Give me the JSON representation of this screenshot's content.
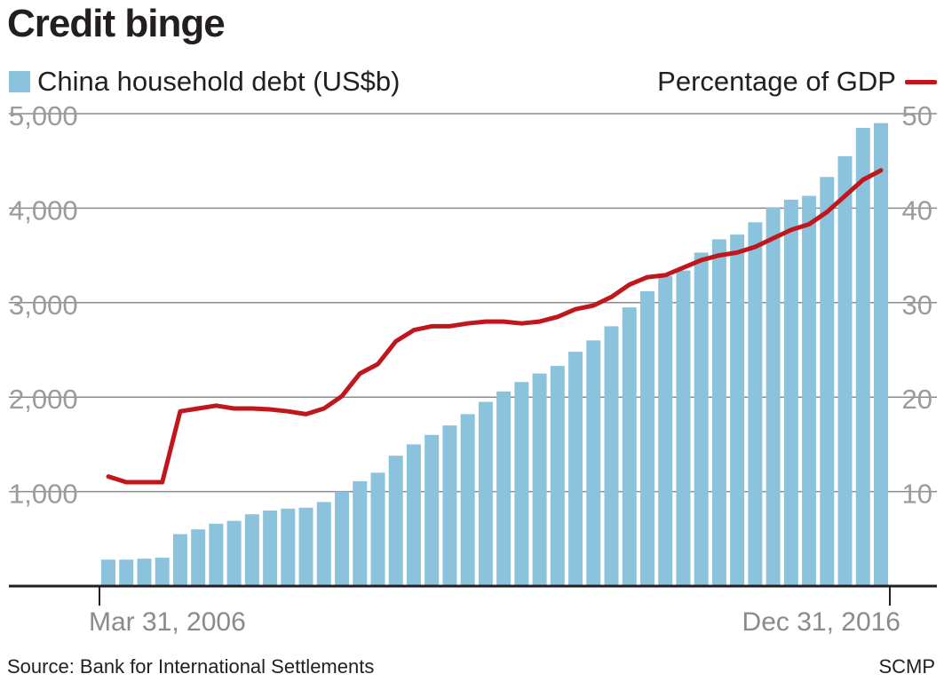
{
  "title": "Credit binge",
  "legend": {
    "bars_label": "China household debt (US$b)",
    "line_label": "Percentage of GDP"
  },
  "footer": {
    "source": "Source: Bank for International Settlements",
    "credit": "SCMP"
  },
  "colors": {
    "bar": "#8cc3dc",
    "line": "#c0171d",
    "grid": "#8a8b8d",
    "axis": "#231f20",
    "tick_label": "#9a9b9d"
  },
  "chart_data": {
    "type": "bar",
    "title": "Credit binge",
    "x": {
      "first_label": "Mar 31, 2006",
      "last_label": "Dec 31, 2016",
      "tick_labels": [
        "Mar 31, 2006",
        "Dec 31, 2016"
      ]
    },
    "y_left": {
      "label": "China household debt (US$b)",
      "ylim": [
        0,
        5000
      ],
      "ticks": [
        "1,000",
        "2,000",
        "3,000",
        "4,000",
        "5,000"
      ],
      "tick_values": [
        1000,
        2000,
        3000,
        4000,
        5000
      ]
    },
    "y_right": {
      "label": "Percentage of GDP",
      "ylim": [
        0,
        50
      ],
      "ticks": [
        "10",
        "20",
        "30",
        "40",
        "50"
      ],
      "tick_values": [
        10,
        20,
        30,
        40,
        50
      ]
    },
    "grid": true,
    "legend_placement": "top",
    "series": [
      {
        "name": "China household debt (US$b)",
        "type": "bar",
        "axis": "left",
        "values": [
          280,
          280,
          290,
          300,
          550,
          600,
          660,
          690,
          760,
          800,
          820,
          830,
          890,
          1000,
          1110,
          1200,
          1380,
          1500,
          1600,
          1700,
          1820,
          1950,
          2060,
          2160,
          2250,
          2330,
          2480,
          2600,
          2750,
          2950,
          3120,
          3280,
          3340,
          3530,
          3670,
          3720,
          3850,
          4010,
          4090,
          4130,
          4330,
          4550,
          4850,
          4900
        ]
      },
      {
        "name": "Percentage of GDP",
        "type": "line",
        "axis": "right",
        "values": [
          11.6,
          11.0,
          11.0,
          11.0,
          18.5,
          18.8,
          19.1,
          18.8,
          18.8,
          18.7,
          18.5,
          18.2,
          18.8,
          20.1,
          22.5,
          23.5,
          25.9,
          27.1,
          27.5,
          27.5,
          27.8,
          28.0,
          28.0,
          27.8,
          28.0,
          28.5,
          29.3,
          29.7,
          30.6,
          31.9,
          32.7,
          32.9,
          33.7,
          34.5,
          35.0,
          35.3,
          35.9,
          36.8,
          37.7,
          38.3,
          39.6,
          41.3,
          43.0,
          44.0
        ]
      }
    ]
  }
}
